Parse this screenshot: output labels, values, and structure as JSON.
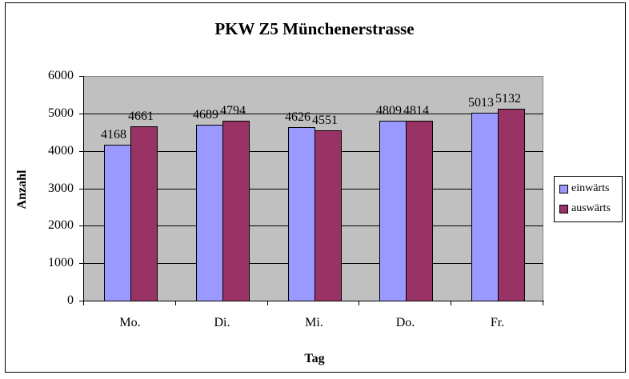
{
  "chart_data": {
    "type": "bar",
    "title": "PKW Z5 Münchenerstrasse",
    "xlabel": "Tag",
    "ylabel": "Anzahl",
    "categories": [
      "Mo.",
      "Di.",
      "Mi.",
      "Do.",
      "Fr."
    ],
    "series": [
      {
        "name": "einwärts",
        "color": "#9999ff",
        "values": [
          4168,
          4689,
          4626,
          4809,
          5013
        ]
      },
      {
        "name": "auswärts",
        "color": "#993366",
        "values": [
          4661,
          4794,
          4551,
          4814,
          5132
        ]
      }
    ],
    "ylim": [
      0,
      6000
    ],
    "yticks": [
      "0",
      "1000",
      "2000",
      "3000",
      "4000",
      "5000",
      "6000"
    ],
    "grid": true,
    "legend_position": "right",
    "plot_background": "#c0c0c0"
  }
}
